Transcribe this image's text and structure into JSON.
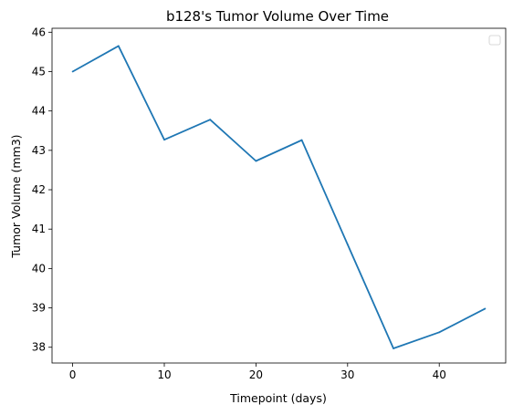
{
  "chart_data": {
    "type": "line",
    "title": "b128's Tumor Volume Over Time",
    "xlabel": "Timepoint (days)",
    "ylabel": "Tumor Volume (mm3)",
    "xlim": [
      -2.25,
      47.25
    ],
    "ylim": [
      37.6,
      46.1
    ],
    "x_ticks": [
      0,
      10,
      20,
      30,
      40
    ],
    "y_ticks": [
      38,
      39,
      40,
      41,
      42,
      43,
      44,
      45,
      46
    ],
    "grid": false,
    "legend": {
      "placement": "top-right",
      "entries": []
    },
    "series": [
      {
        "color": "#1f77b4",
        "x": [
          0,
          5,
          10,
          15,
          20,
          25,
          30,
          35,
          40,
          45
        ],
        "y": [
          45.0,
          45.65,
          43.27,
          43.78,
          42.73,
          43.26,
          40.61,
          37.97,
          38.38,
          38.98
        ]
      }
    ]
  }
}
